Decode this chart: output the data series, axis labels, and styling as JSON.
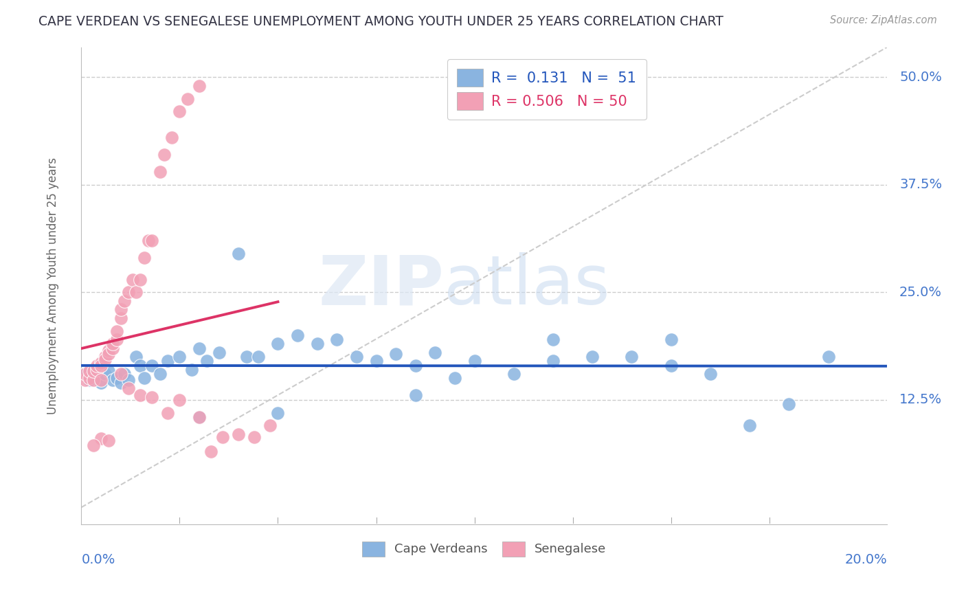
{
  "title": "CAPE VERDEAN VS SENEGALESE UNEMPLOYMENT AMONG YOUTH UNDER 25 YEARS CORRELATION CHART",
  "source": "Source: ZipAtlas.com",
  "ylabel": "Unemployment Among Youth under 25 years",
  "xlim": [
    0.0,
    0.205
  ],
  "ylim": [
    -0.02,
    0.535
  ],
  "legend_cv": {
    "R": 0.131,
    "N": 51
  },
  "legend_sn": {
    "R": 0.506,
    "N": 50
  },
  "watermark_zip": "ZIP",
  "watermark_atlas": "atlas",
  "blue_color": "#8ab4e0",
  "pink_color": "#f2a0b5",
  "blue_line_color": "#2255bb",
  "pink_line_color": "#dd3366",
  "axis_label_color": "#4477cc",
  "title_color": "#333344",
  "ylabel_color": "#666666",
  "grid_color": "#cccccc",
  "ref_line_color": "#cccccc",
  "cv_x": [
    0.001,
    0.002,
    0.003,
    0.004,
    0.005,
    0.006,
    0.007,
    0.008,
    0.009,
    0.01,
    0.011,
    0.012,
    0.014,
    0.015,
    0.016,
    0.018,
    0.02,
    0.022,
    0.025,
    0.028,
    0.03,
    0.032,
    0.035,
    0.04,
    0.042,
    0.045,
    0.05,
    0.055,
    0.06,
    0.065,
    0.07,
    0.075,
    0.08,
    0.085,
    0.09,
    0.095,
    0.1,
    0.11,
    0.12,
    0.13,
    0.14,
    0.15,
    0.16,
    0.17,
    0.18,
    0.19,
    0.15,
    0.12,
    0.085,
    0.05,
    0.03
  ],
  "cv_y": [
    0.155,
    0.148,
    0.16,
    0.152,
    0.145,
    0.155,
    0.158,
    0.148,
    0.15,
    0.145,
    0.155,
    0.148,
    0.175,
    0.165,
    0.15,
    0.165,
    0.155,
    0.17,
    0.175,
    0.16,
    0.185,
    0.17,
    0.18,
    0.295,
    0.175,
    0.175,
    0.19,
    0.2,
    0.19,
    0.195,
    0.175,
    0.17,
    0.178,
    0.165,
    0.18,
    0.15,
    0.17,
    0.155,
    0.195,
    0.175,
    0.175,
    0.165,
    0.155,
    0.095,
    0.12,
    0.175,
    0.195,
    0.17,
    0.13,
    0.11,
    0.105
  ],
  "sn_x": [
    0.001,
    0.001,
    0.002,
    0.002,
    0.003,
    0.003,
    0.004,
    0.004,
    0.005,
    0.005,
    0.005,
    0.006,
    0.006,
    0.007,
    0.007,
    0.008,
    0.008,
    0.009,
    0.009,
    0.01,
    0.01,
    0.011,
    0.012,
    0.013,
    0.014,
    0.015,
    0.016,
    0.017,
    0.018,
    0.02,
    0.021,
    0.023,
    0.025,
    0.027,
    0.03,
    0.033,
    0.036,
    0.04,
    0.044,
    0.048,
    0.01,
    0.012,
    0.015,
    0.018,
    0.022,
    0.025,
    0.03,
    0.005,
    0.007,
    0.003
  ],
  "sn_y": [
    0.148,
    0.155,
    0.15,
    0.158,
    0.148,
    0.158,
    0.16,
    0.165,
    0.148,
    0.168,
    0.165,
    0.175,
    0.172,
    0.182,
    0.178,
    0.185,
    0.19,
    0.195,
    0.205,
    0.22,
    0.23,
    0.24,
    0.25,
    0.265,
    0.25,
    0.265,
    0.29,
    0.31,
    0.31,
    0.39,
    0.41,
    0.43,
    0.46,
    0.475,
    0.49,
    0.065,
    0.082,
    0.085,
    0.082,
    0.095,
    0.155,
    0.138,
    0.13,
    0.128,
    0.11,
    0.125,
    0.105,
    0.08,
    0.078,
    0.072
  ]
}
